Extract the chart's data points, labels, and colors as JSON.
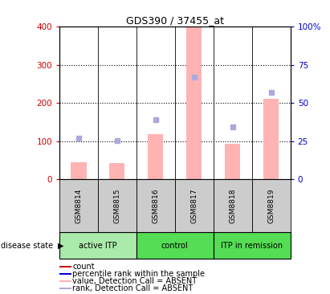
{
  "title": "GDS390 / 37455_at",
  "samples": [
    "GSM8814",
    "GSM8815",
    "GSM8816",
    "GSM8817",
    "GSM8818",
    "GSM8819"
  ],
  "bar_values": [
    45,
    43,
    118,
    400,
    93,
    210
  ],
  "rank_values_pct": [
    27,
    25.5,
    39,
    67,
    34.5,
    57
  ],
  "bar_color": "#ffb3b3",
  "square_color": "#aaaadd",
  "ylim_left": [
    0,
    400
  ],
  "ylim_right": [
    0,
    100
  ],
  "yticks_left": [
    0,
    100,
    200,
    300,
    400
  ],
  "yticks_right": [
    0,
    25,
    50,
    75,
    100
  ],
  "yticklabels_right": [
    "0",
    "25",
    "50",
    "75",
    "100%"
  ],
  "groups": [
    {
      "label": "active ITP",
      "start": 0,
      "end": 1,
      "color": "#aaeaaa"
    },
    {
      "label": "control",
      "start": 2,
      "end": 3,
      "color": "#55dd55"
    },
    {
      "label": "ITP in remission",
      "start": 4,
      "end": 5,
      "color": "#55dd55"
    }
  ],
  "sample_box_color": "#cccccc",
  "disease_state_label": "disease state",
  "legend_items": [
    {
      "label": "count",
      "color": "#cc0000"
    },
    {
      "label": "percentile rank within the sample",
      "color": "#0000cc"
    },
    {
      "label": "value, Detection Call = ABSENT",
      "color": "#ffb3b3"
    },
    {
      "label": "rank, Detection Call = ABSENT",
      "color": "#aaaadd"
    }
  ],
  "left_tick_color": "#cc0000",
  "right_tick_color": "#0000cc",
  "grid_yticks": [
    100,
    200,
    300
  ]
}
